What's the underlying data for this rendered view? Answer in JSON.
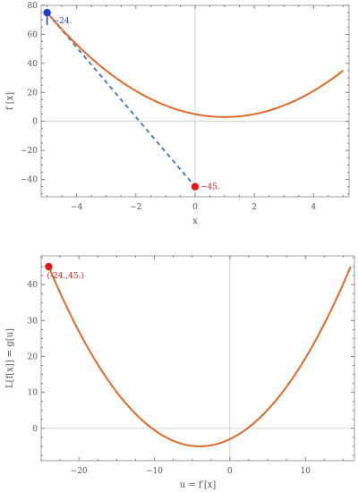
{
  "chart_data": [
    {
      "type": "line",
      "xlabel": "x",
      "ylabel": "f [x]",
      "xlim": [
        -5.2,
        5.2
      ],
      "ylim": [
        -52,
        80
      ],
      "xticks": [
        -4,
        -2,
        0,
        2,
        4
      ],
      "yticks": [
        -40,
        -20,
        0,
        20,
        40,
        60,
        80
      ],
      "xtick_labels": [
        "−4",
        "−2",
        "0",
        "2",
        "4"
      ],
      "ytick_labels": [
        "−40",
        "−20",
        "0",
        "20",
        "40",
        "60",
        "80"
      ],
      "curve": {
        "formula": "f(x) = 2x^2 - 4x + 5",
        "x_range": [
          -5,
          5
        ],
        "color": "#e06a2c"
      },
      "tangent_line": {
        "x": [
          -5,
          0
        ],
        "y": [
          75,
          -45
        ],
        "style": "dashed",
        "color": "#4f7fc4"
      },
      "points": [
        {
          "x": -5,
          "y": 75,
          "color": "#1f3fd1",
          "label": "−24."
        },
        {
          "x": 0,
          "y": -45,
          "color": "#e01818",
          "label": "−45."
        }
      ]
    },
    {
      "type": "line",
      "xlabel": "u = f′[x]",
      "ylabel": "L[f[x]] = g[u]",
      "xlim": [
        -25,
        16.5
      ],
      "ylim": [
        -9,
        48
      ],
      "xticks": [
        -20,
        -10,
        0,
        10
      ],
      "yticks": [
        0,
        10,
        20,
        30,
        40
      ],
      "xtick_labels": [
        "−20",
        "−10",
        "0",
        "10"
      ],
      "ytick_labels": [
        "0",
        "10",
        "20",
        "30",
        "40"
      ],
      "curve": {
        "formula": "g(u) = u^2/8 + u - 3",
        "u_range": [
          -24,
          16
        ],
        "color": "#e06a2c"
      },
      "points": [
        {
          "x": -24,
          "y": 45,
          "color": "#e01818",
          "label": "(-24.,45.)"
        }
      ]
    }
  ]
}
